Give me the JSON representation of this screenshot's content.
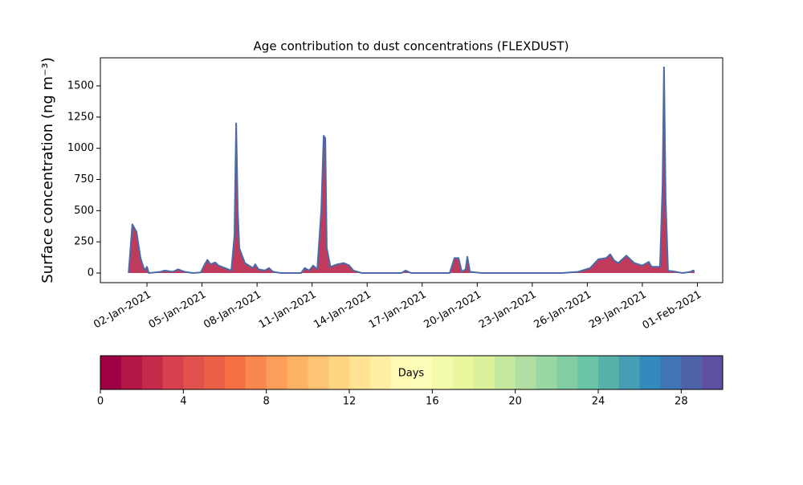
{
  "chart_data": {
    "type": "area_line",
    "title": "Age contribution to dust concentrations (FLEXDUST)",
    "ylabel": "Surface concentration (ng m⁻³)",
    "x": [
      1.0,
      1.2,
      1.43,
      1.65,
      1.78,
      1.87,
      2.0,
      2.1,
      2.74,
      2.96,
      3.4,
      3.7,
      4.06,
      4.5,
      4.93,
      5.15,
      5.3,
      5.46,
      5.72,
      5.9,
      6.25,
      6.6,
      6.77,
      6.86,
      6.95,
      7.03,
      7.34,
      7.78,
      7.9,
      8.08,
      8.43,
      8.65,
      8.87,
      9.3,
      10.4,
      10.6,
      10.84,
      11.06,
      11.28,
      11.5,
      11.63,
      11.72,
      11.8,
      12.0,
      12.37,
      12.72,
      13.03,
      13.25,
      13.7,
      15.87,
      16.1,
      16.4,
      18.5,
      18.76,
      18.98,
      19.16,
      19.37,
      19.46,
      19.6,
      20.25,
      24.6,
      25.5,
      26.16,
      26.6,
      27.03,
      27.25,
      27.47,
      27.69,
      28.13,
      28.56,
      29.0,
      29.35,
      29.5,
      29.96,
      30.1,
      30.18,
      30.27,
      30.4,
      31.2,
      31.63,
      31.76,
      31.85
    ],
    "series": [
      {
        "color": "#4a6aa8",
        "fill_color": "#b5173f",
        "values": [
          0,
          390,
          330,
          120,
          60,
          20,
          50,
          0,
          10,
          20,
          10,
          30,
          10,
          0,
          5,
          70,
          105,
          70,
          85,
          60,
          40,
          20,
          300,
          1200,
          500,
          200,
          80,
          40,
          70,
          30,
          20,
          40,
          10,
          0,
          0,
          40,
          20,
          60,
          30,
          500,
          1100,
          1080,
          200,
          50,
          70,
          80,
          60,
          20,
          0,
          0,
          20,
          0,
          0,
          120,
          120,
          10,
          30,
          130,
          10,
          0,
          0,
          10,
          40,
          110,
          120,
          150,
          100,
          80,
          140,
          80,
          60,
          90,
          50,
          50,
          700,
          1650,
          600,
          20,
          0,
          10,
          20,
          15
        ]
      }
    ],
    "xlim": [
      -0.54,
      33.38
    ],
    "xticks": [
      {
        "value": 2,
        "label": "02-Jan-2021"
      },
      {
        "value": 5,
        "label": "05-Jan-2021"
      },
      {
        "value": 8,
        "label": "08-Jan-2021"
      },
      {
        "value": 11,
        "label": "11-Jan-2021"
      },
      {
        "value": 14,
        "label": "14-Jan-2021"
      },
      {
        "value": 17,
        "label": "17-Jan-2021"
      },
      {
        "value": 20,
        "label": "20-Jan-2021"
      },
      {
        "value": 23,
        "label": "23-Jan-2021"
      },
      {
        "value": 26,
        "label": "26-Jan-2021"
      },
      {
        "value": 29,
        "label": "29-Jan-2021"
      },
      {
        "value": 32,
        "label": "01-Feb-2021"
      }
    ],
    "ylim": [
      -77,
      1725
    ],
    "yticks": [
      0,
      250,
      500,
      750,
      1000,
      1250,
      1500
    ],
    "colorbar": {
      "label": "Days",
      "lim": [
        0,
        30
      ],
      "bins": 30,
      "ticks": [
        0,
        4,
        8,
        12,
        16,
        20,
        24,
        28
      ],
      "colors": [
        "#9e0142",
        "#d53e4f",
        "#f46d43",
        "#fdae61",
        "#fee08b",
        "#ffffbf",
        "#e6f598",
        "#abdda4",
        "#66c2a5",
        "#3288bd",
        "#5e4fa2"
      ]
    }
  }
}
